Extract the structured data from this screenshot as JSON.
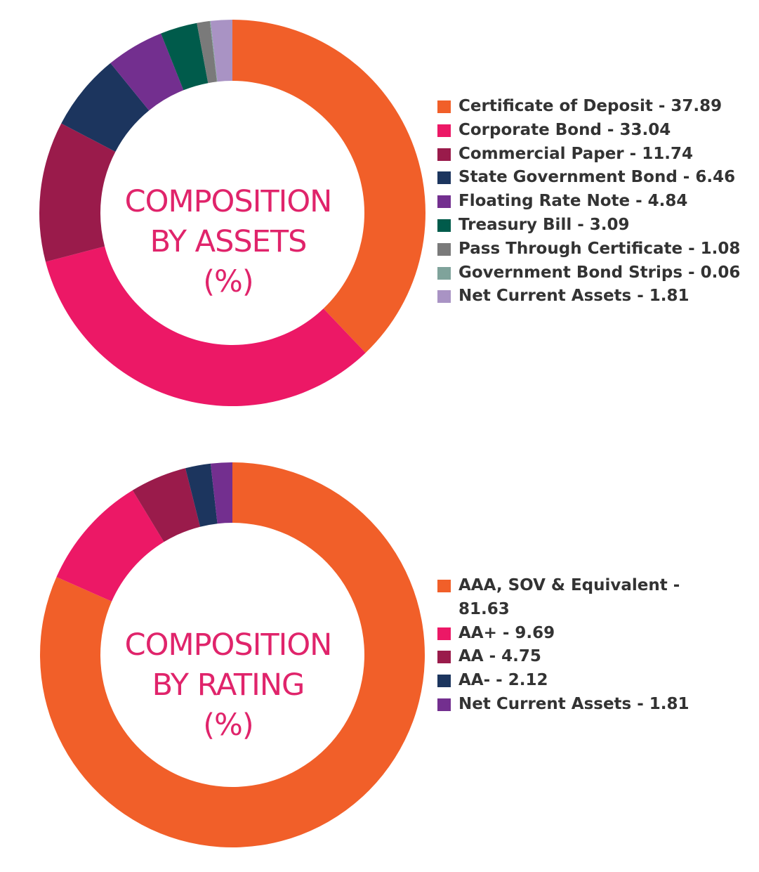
{
  "chart_data": [
    {
      "type": "pie",
      "title": [
        "COMPOSITION",
        "BY ASSETS",
        "(%)"
      ],
      "categories": [
        "Certificate of Deposit",
        "Corporate Bond",
        "Commercial Paper",
        "State Government Bond",
        "Floating Rate Note",
        "Treasury Bill",
        "Pass Through Certificate",
        "Government Bond Strips",
        "Net Current Assets"
      ],
      "values": [
        37.89,
        33.04,
        11.74,
        6.46,
        4.84,
        3.09,
        1.08,
        0.06,
        1.81
      ],
      "legend_labels": [
        "Certificate of Deposit - 37.89",
        "Corporate Bond - 33.04",
        "Commercial Paper - 11.74",
        "State Government Bond - 6.46",
        "Floating Rate Note - 4.84",
        "Treasury Bill - 3.09",
        "Pass Through Certificate - 1.08",
        "Government Bond Strips - 0.06",
        "Net Current Assets - 1.81"
      ],
      "colors": [
        "#f15f29",
        "#ec1866",
        "#9a1b4b",
        "#1c355e",
        "#732f8f",
        "#005b4b",
        "#7a7a7a",
        "#7fa39b",
        "#a993c4"
      ],
      "legend_position": "right"
    },
    {
      "type": "pie",
      "title": [
        "COMPOSITION",
        "BY RATING",
        "(%)"
      ],
      "categories": [
        "AAA, SOV & Equivalent",
        "AA+",
        "AA",
        "AA-",
        "Net Current Assets"
      ],
      "values": [
        81.63,
        9.69,
        4.75,
        2.12,
        1.81
      ],
      "legend_labels": [
        "AAA, SOV & Equivalent - 81.63",
        "AA+ - 9.69",
        "AA - 4.75",
        "AA- - 2.12",
        "Net Current Assets - 1.81"
      ],
      "colors": [
        "#f15f29",
        "#ec1866",
        "#9a1b4b",
        "#1c355e",
        "#732f8f"
      ],
      "legend_position": "right"
    }
  ]
}
